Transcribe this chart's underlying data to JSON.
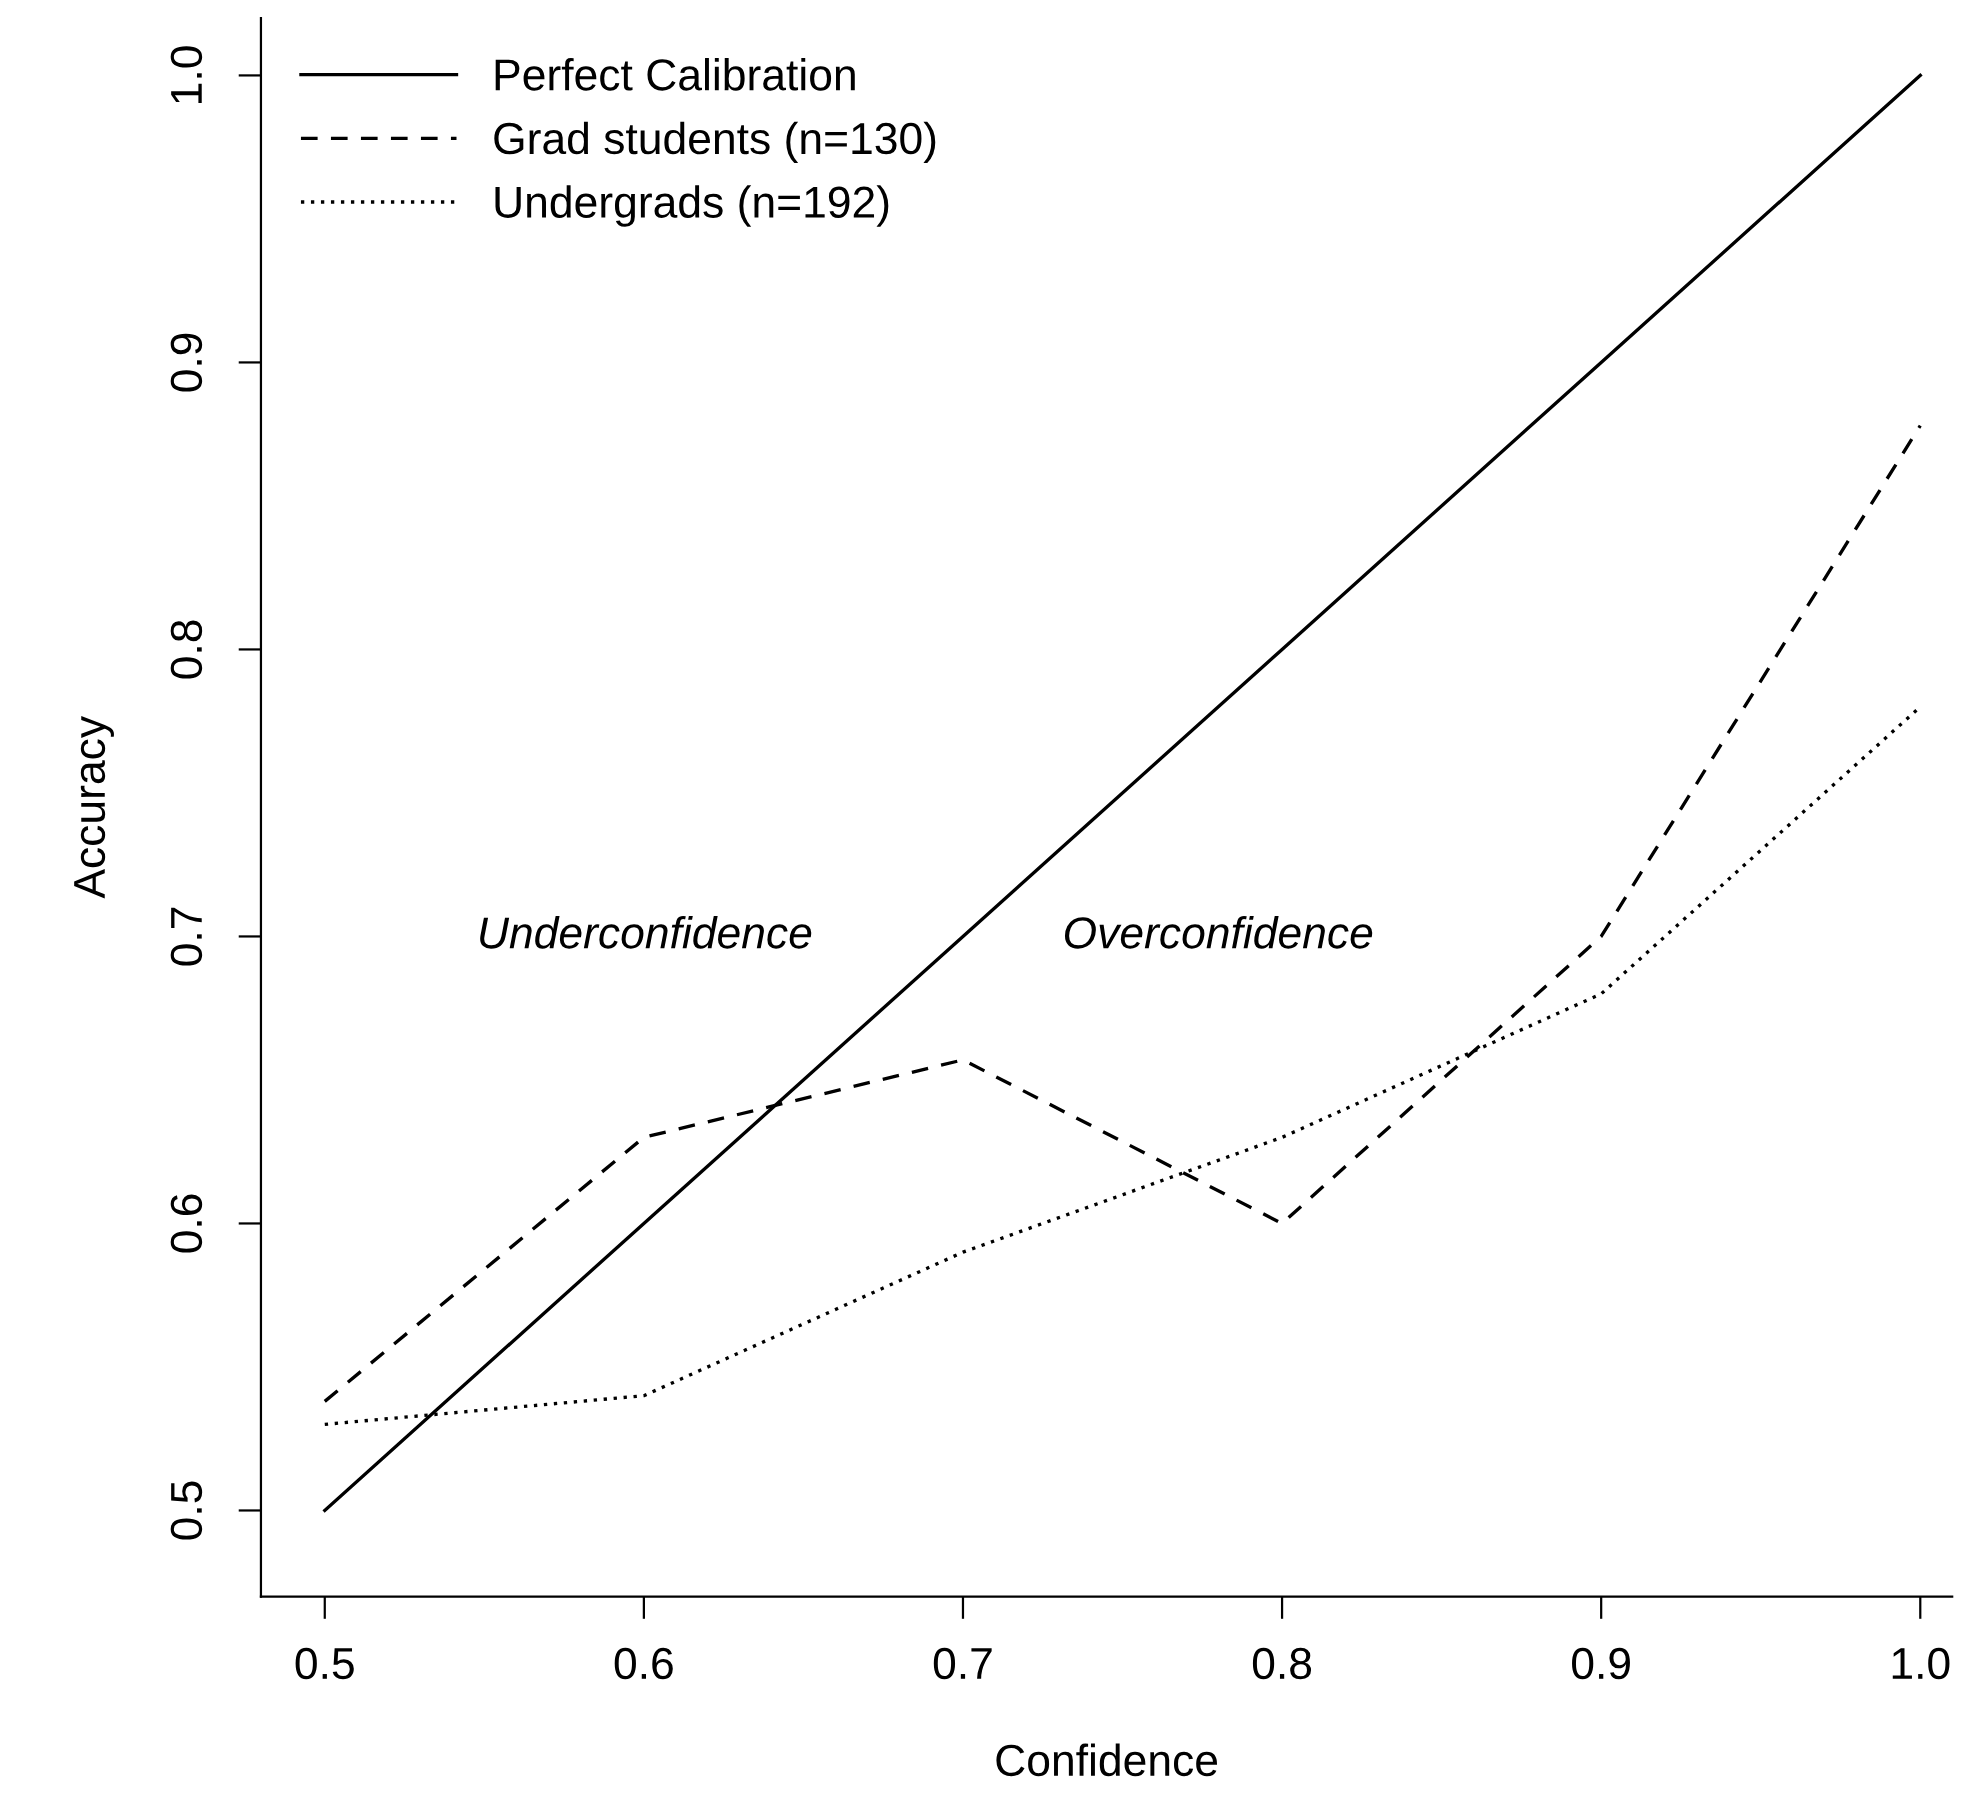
{
  "chart_data": {
    "type": "line",
    "xlabel": "Confidence",
    "ylabel": "Accuracy",
    "x": [
      0.5,
      0.6,
      0.7,
      0.8,
      0.9,
      1.0
    ],
    "series": [
      {
        "name": "Perfect Calibration",
        "color": "#000000",
        "line_style": "solid",
        "values": [
          0.5,
          0.6,
          0.7,
          0.8,
          0.9,
          1.0
        ]
      },
      {
        "name": "Grad students (n=130)",
        "color": "#000000",
        "line_style": "dashed",
        "values": [
          0.538,
          0.63,
          0.657,
          0.6,
          0.7,
          0.878
        ]
      },
      {
        "name": "Undergrads (n=192)",
        "color": "#000000",
        "line_style": "dotted",
        "values": [
          0.53,
          0.54,
          0.59,
          0.63,
          0.68,
          0.78
        ]
      }
    ],
    "annotations": [
      "Underconfidence",
      "Overconfidence"
    ],
    "xlim": [
      0.48,
      1.01
    ],
    "ylim": [
      0.47,
      1.02
    ],
    "xticks": [
      0.5,
      0.6,
      0.7,
      0.8,
      0.9,
      {
        "value": 1.0,
        "label": "1.0"
      }
    ],
    "yticks": [
      0.5,
      0.6,
      0.7,
      0.8,
      0.9,
      {
        "value": 1.0,
        "label": "1.0"
      }
    ],
    "grid": false,
    "legend": "top left",
    "marker": "none"
  }
}
